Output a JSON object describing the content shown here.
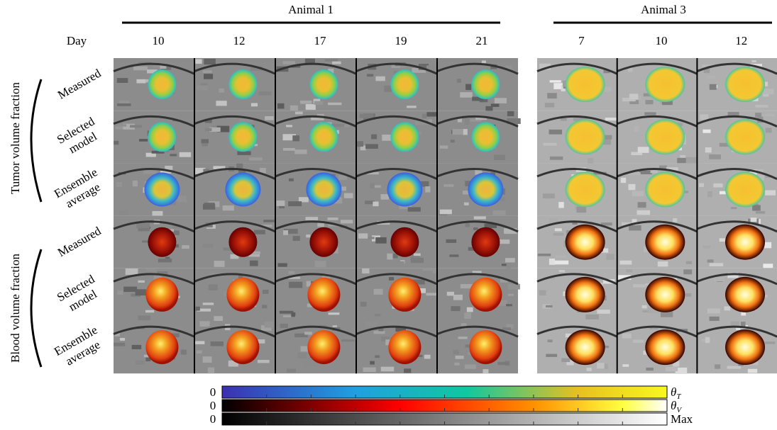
{
  "header": {
    "day_label": "Day",
    "groups": [
      {
        "title": "Animal 1",
        "days": [
          "10",
          "12",
          "17",
          "19",
          "21"
        ]
      },
      {
        "title": "Animal 3",
        "days": [
          "7",
          "10",
          "12"
        ]
      }
    ]
  },
  "row_groups": [
    {
      "title": "Tumor volume fraction",
      "rows": [
        [
          "Measured"
        ],
        [
          "Selected",
          "model"
        ],
        [
          "Ensemble",
          "average"
        ]
      ]
    },
    {
      "title": "Blood volume fraction",
      "rows": [
        [
          "Measured"
        ],
        [
          "Selected",
          "model"
        ],
        [
          "Ensemble",
          "average"
        ]
      ]
    }
  ],
  "colorbars": [
    {
      "min": "0",
      "symbol": "θ",
      "subscript": "T"
    },
    {
      "min": "0",
      "symbol": "θ",
      "subscript": "V"
    },
    {
      "min": "0",
      "symbol": "Max"
    }
  ]
}
